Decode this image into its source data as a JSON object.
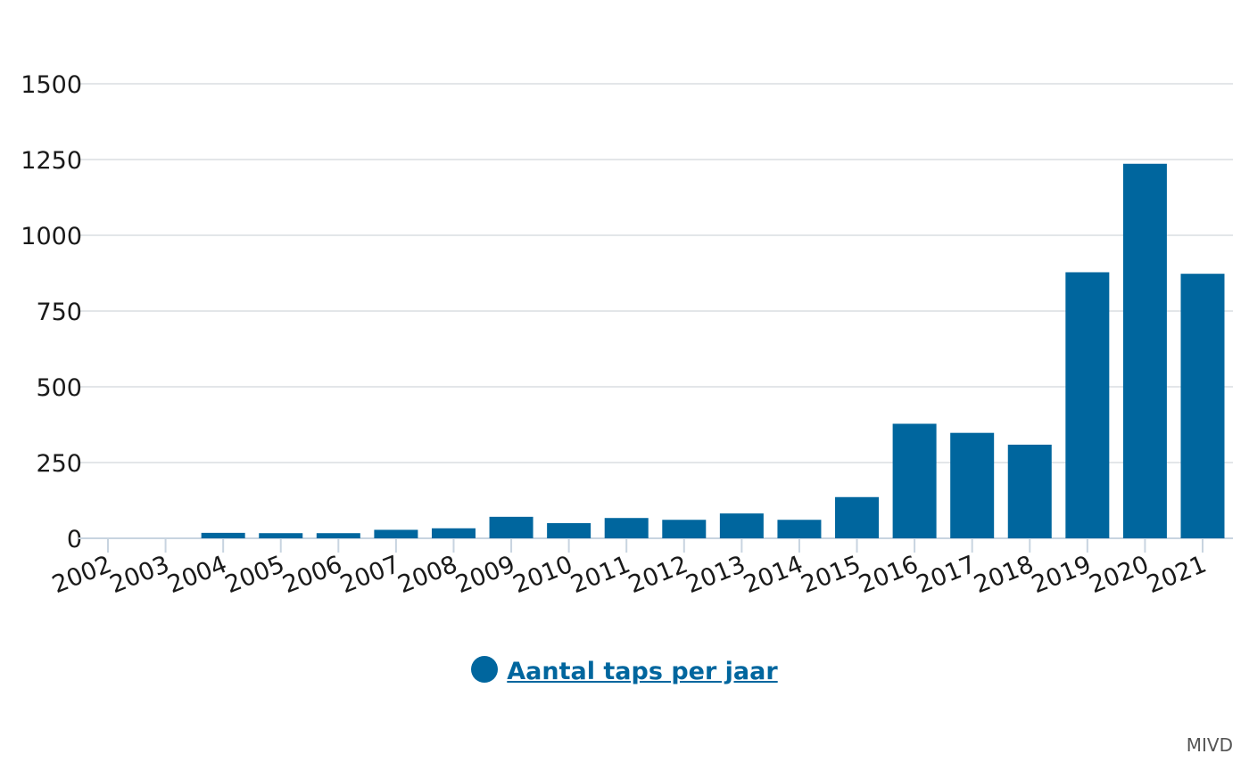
{
  "chart_data": {
    "type": "bar",
    "categories": [
      "2002",
      "2003",
      "2004",
      "2005",
      "2006",
      "2007",
      "2008",
      "2009",
      "2010",
      "2011",
      "2012",
      "2013",
      "2014",
      "2015",
      "2016",
      "2017",
      "2018",
      "2019",
      "2020",
      "2021"
    ],
    "series": [
      {
        "name": "Aantal taps per jaar",
        "color": "#00669e",
        "values": [
          0,
          0,
          18,
          17,
          17,
          28,
          33,
          71,
          50,
          67,
          61,
          82,
          61,
          136,
          378,
          348,
          309,
          878,
          1236,
          873
        ]
      }
    ],
    "ylim": [
      0,
      1500
    ],
    "yticks": [
      0,
      250,
      500,
      750,
      1000,
      1250,
      1500
    ],
    "grid": true,
    "legend": "bottom-center"
  },
  "legend": {
    "label": "Aantal taps per jaar",
    "color": "#00669e"
  },
  "source": "MIVD"
}
